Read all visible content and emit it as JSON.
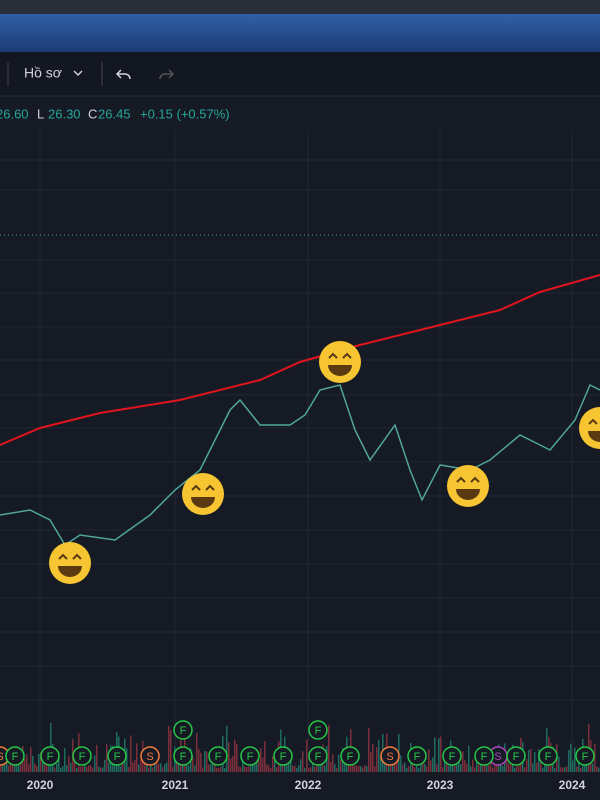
{
  "toolbar": {
    "profile": "Hồ sơ"
  },
  "legend": {
    "high_value": "26.60",
    "low_label": "L",
    "low_value": "26.30",
    "close_label": "C",
    "close_value": "26.45",
    "change": "+0.15 (+0.57%)"
  },
  "x_axis": {
    "labels": [
      "2020",
      "2021",
      "2022",
      "2023",
      "2024"
    ]
  },
  "events": [
    "S",
    "F",
    "F",
    "F",
    "F",
    "S",
    "F",
    "F",
    "F",
    "F",
    "F",
    "F",
    "S",
    "F",
    "F",
    "F",
    "S",
    "F",
    "F",
    "F",
    "F",
    "F"
  ]
}
